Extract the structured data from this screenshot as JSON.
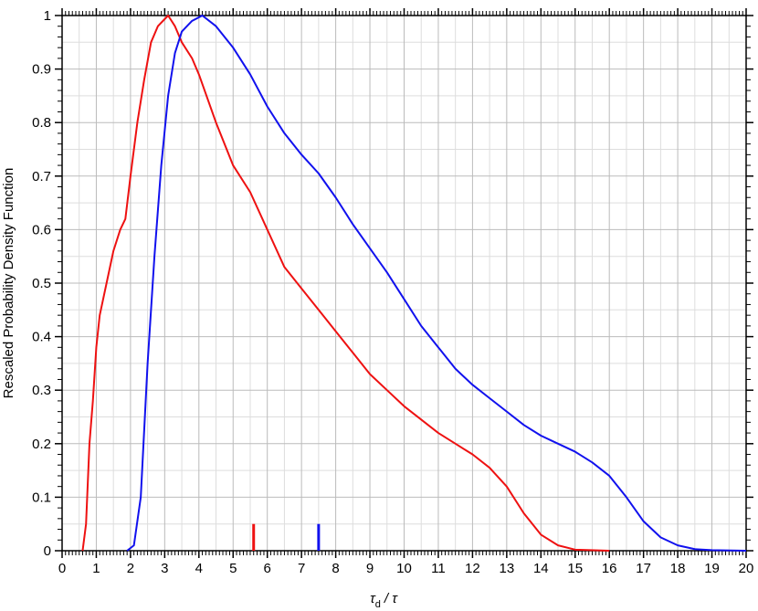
{
  "chart_data": {
    "type": "line",
    "xlabel": [
      "τ",
      "d",
      "/ τ"
    ],
    "ylabel": "Rescaled Probability Density Function",
    "xlim": [
      0,
      20
    ],
    "xticks": [
      0,
      1,
      2,
      3,
      4,
      5,
      6,
      7,
      8,
      9,
      10,
      11,
      12,
      13,
      14,
      15,
      16,
      17,
      18,
      19,
      20
    ],
    "ylim": [
      0,
      1
    ],
    "yticks": [
      0,
      0.1,
      0.2,
      0.3,
      0.4,
      0.5,
      0.6,
      0.7,
      0.8,
      0.9,
      1
    ],
    "grid": true,
    "series": [
      {
        "color": "#ee1111",
        "x": [
          0.6,
          0.7,
          0.8,
          0.9,
          1.0,
          1.1,
          1.3,
          1.5,
          1.7,
          1.85,
          2.0,
          2.2,
          2.4,
          2.6,
          2.8,
          3.1,
          3.3,
          3.5,
          3.8,
          4.0,
          4.5,
          5.0,
          5.5,
          6.0,
          6.5,
          7.0,
          7.5,
          8.0,
          8.5,
          9.0,
          9.5,
          10,
          10.5,
          11,
          11.5,
          12,
          12.5,
          13,
          13.5,
          14,
          14.5,
          15,
          16
        ],
        "values": [
          0,
          0.05,
          0.2,
          0.28,
          0.38,
          0.44,
          0.5,
          0.56,
          0.6,
          0.62,
          0.7,
          0.8,
          0.88,
          0.95,
          0.98,
          1.0,
          0.98,
          0.95,
          0.92,
          0.89,
          0.8,
          0.72,
          0.67,
          0.6,
          0.53,
          0.49,
          0.45,
          0.41,
          0.37,
          0.33,
          0.3,
          0.27,
          0.245,
          0.22,
          0.2,
          0.18,
          0.155,
          0.12,
          0.07,
          0.03,
          0.01,
          0.002,
          0
        ]
      },
      {
        "color": "#1111ee",
        "x": [
          1.9,
          2.1,
          2.3,
          2.5,
          2.7,
          2.9,
          3.1,
          3.3,
          3.5,
          3.8,
          4.1,
          4.5,
          5.0,
          5.5,
          6,
          6.5,
          7,
          7.5,
          8,
          8.5,
          9,
          9.5,
          10,
          10.5,
          11,
          11.5,
          12,
          12.5,
          13,
          13.5,
          14,
          14.5,
          15,
          15.5,
          16,
          16.5,
          17,
          17.5,
          18,
          18.5,
          19,
          20
        ],
        "values": [
          0,
          0.01,
          0.1,
          0.35,
          0.55,
          0.72,
          0.85,
          0.93,
          0.97,
          0.99,
          1.0,
          0.98,
          0.94,
          0.89,
          0.83,
          0.78,
          0.74,
          0.705,
          0.66,
          0.61,
          0.565,
          0.52,
          0.47,
          0.42,
          0.38,
          0.34,
          0.31,
          0.285,
          0.26,
          0.235,
          0.215,
          0.2,
          0.185,
          0.165,
          0.14,
          0.1,
          0.055,
          0.025,
          0.01,
          0.003,
          0.001,
          0
        ]
      }
    ],
    "markers": [
      {
        "color": "#ee1111",
        "x": 5.6,
        "height": 0.05
      },
      {
        "color": "#1111ee",
        "x": 7.5,
        "height": 0.05
      }
    ]
  }
}
